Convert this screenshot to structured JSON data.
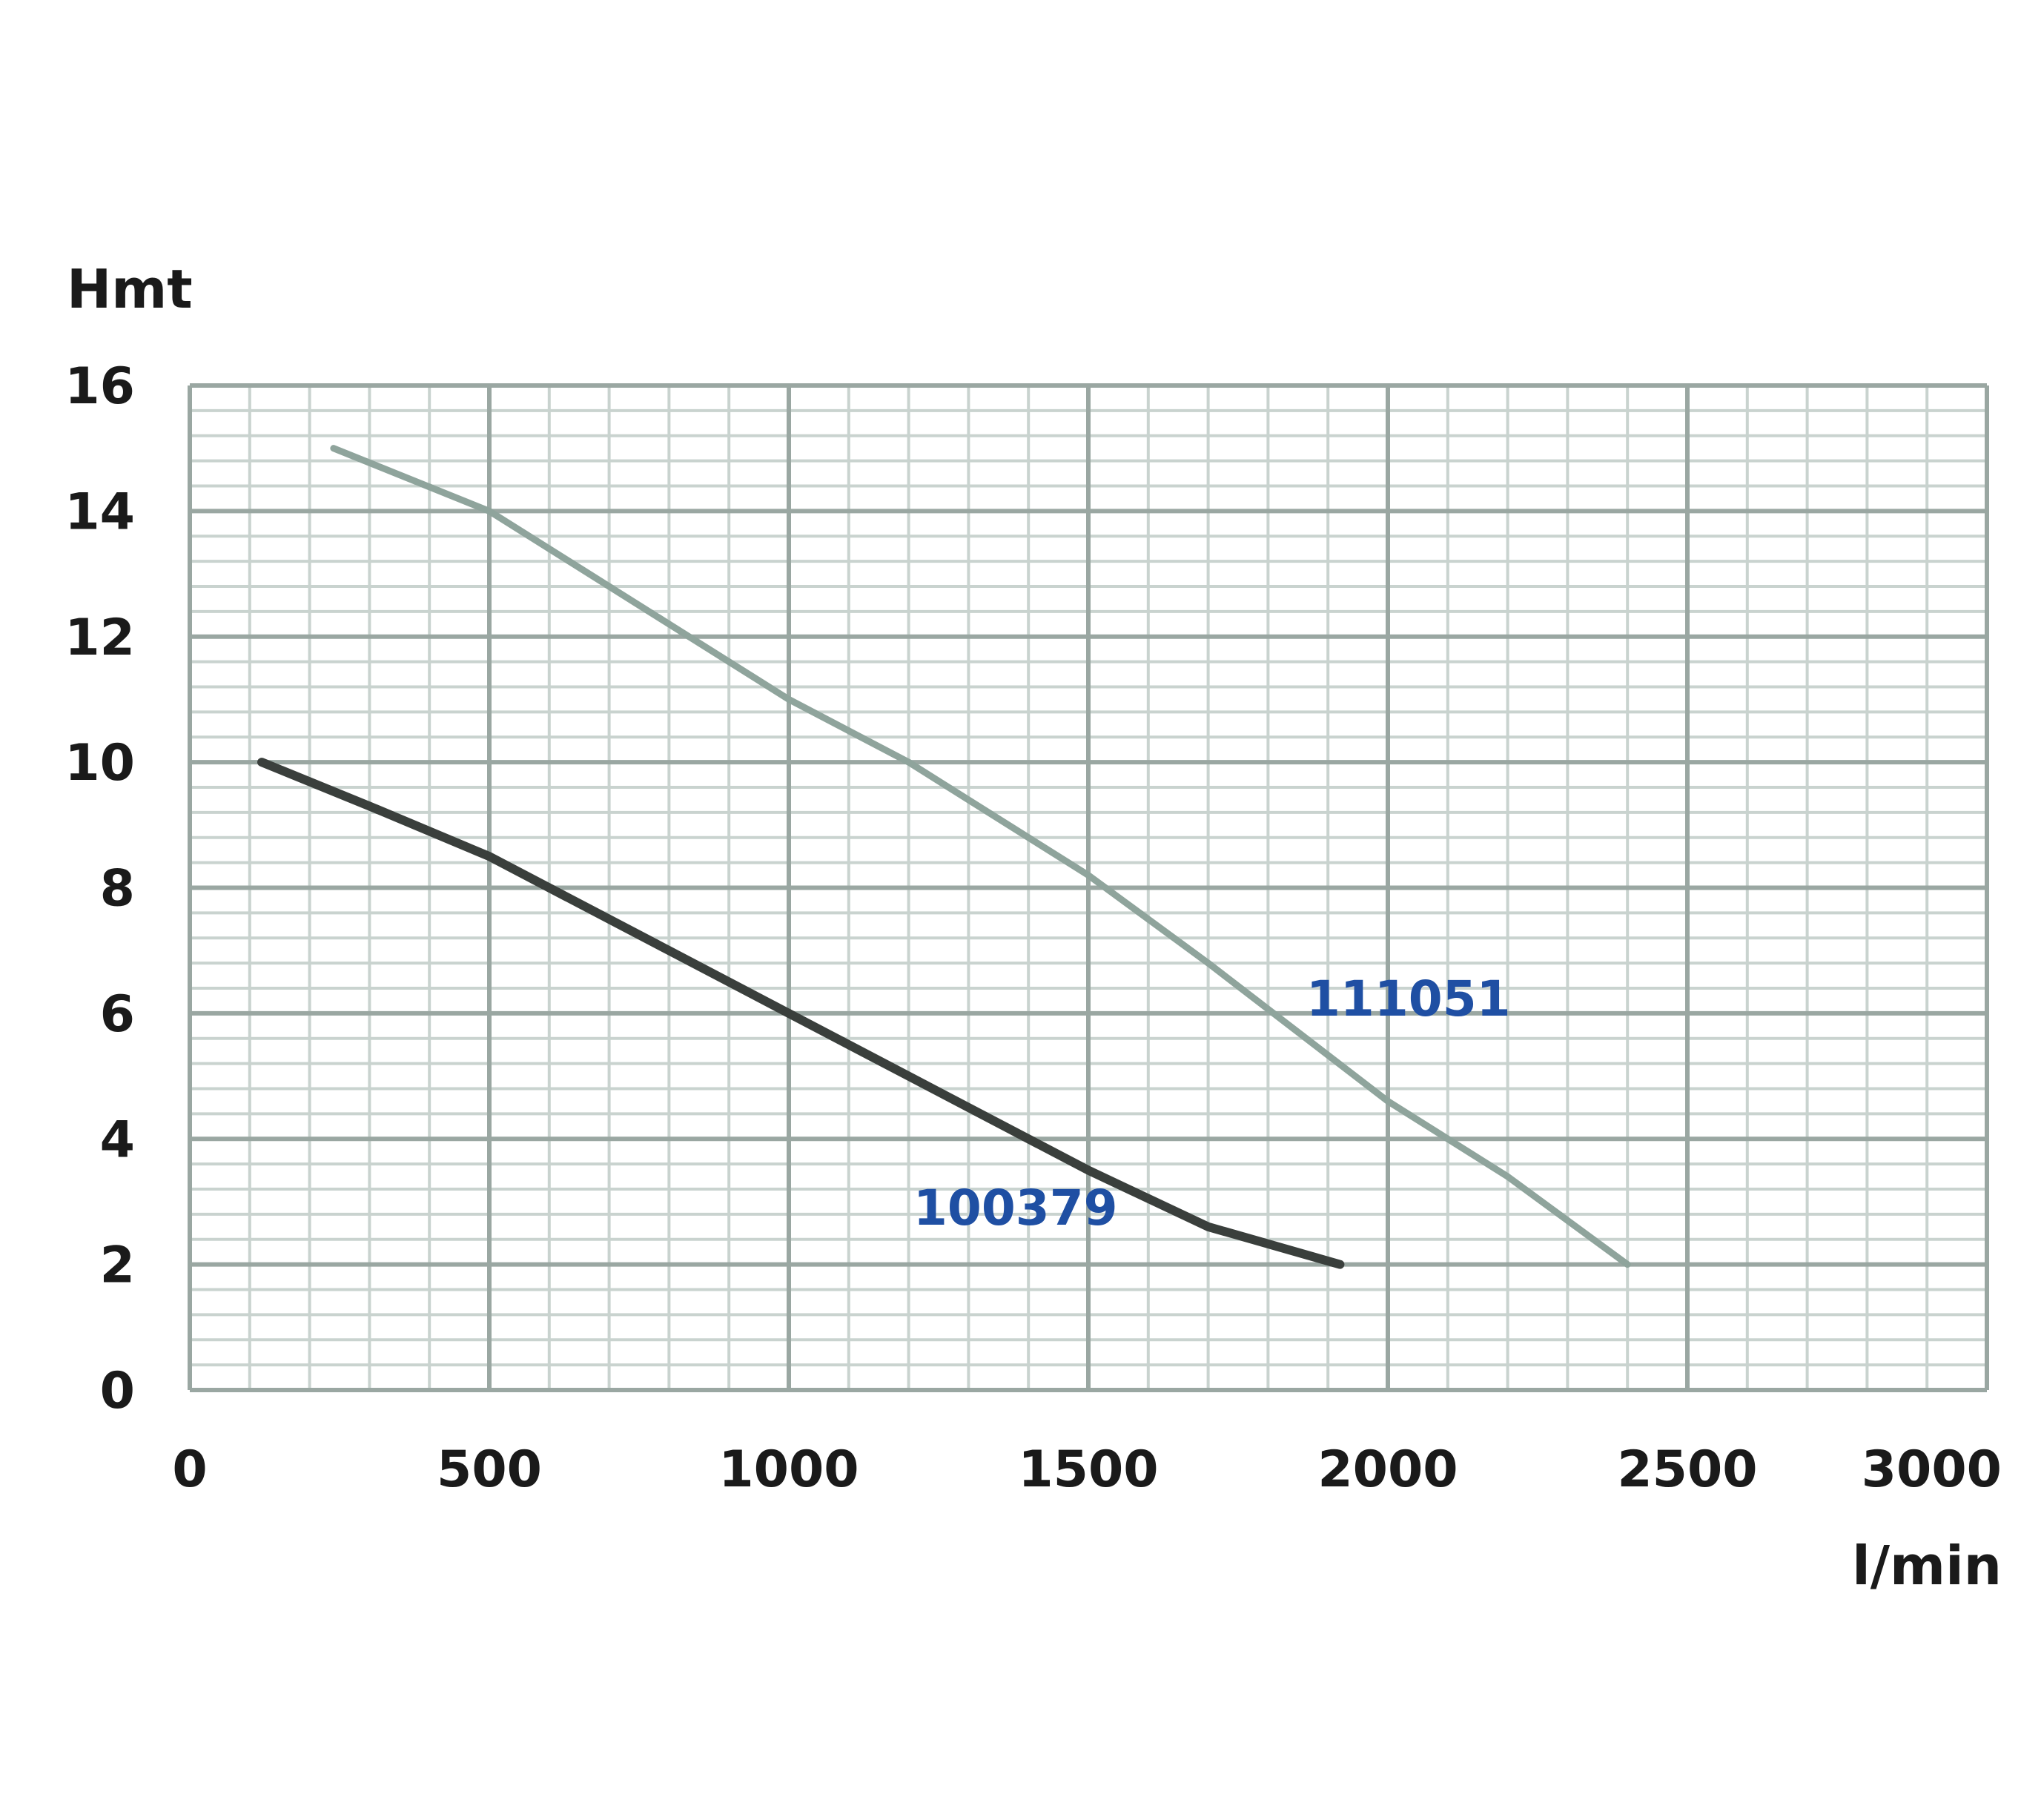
{
  "chart_data": {
    "type": "line",
    "title": "",
    "xlabel": "l/min",
    "ylabel": "Hmt",
    "xlim": [
      0,
      3000
    ],
    "ylim": [
      0,
      16
    ],
    "x_ticks": [
      "0",
      "500",
      "1000",
      "1500",
      "2000",
      "2500",
      "3000"
    ],
    "y_ticks": [
      "0",
      "2",
      "4",
      "6",
      "8",
      "10",
      "12",
      "14",
      "16"
    ],
    "grid": true,
    "series": [
      {
        "name": "111051",
        "color": "#8fa49c",
        "points": [
          [
            240,
            15.0
          ],
          [
            500,
            14.0
          ],
          [
            800,
            12.2
          ],
          [
            1000,
            11.0
          ],
          [
            1200,
            10.0
          ],
          [
            1500,
            8.2
          ],
          [
            1700,
            6.8
          ],
          [
            2000,
            4.6
          ],
          [
            2200,
            3.4
          ],
          [
            2400,
            2.0
          ]
        ]
      },
      {
        "name": "100379",
        "color": "#3a3f3c",
        "points": [
          [
            120,
            10.0
          ],
          [
            300,
            9.3
          ],
          [
            500,
            8.5
          ],
          [
            800,
            7.0
          ],
          [
            1000,
            6.0
          ],
          [
            1200,
            5.0
          ],
          [
            1500,
            3.5
          ],
          [
            1700,
            2.6
          ],
          [
            1920,
            2.0
          ]
        ]
      }
    ],
    "series_label_color": "#1f4fa3"
  }
}
